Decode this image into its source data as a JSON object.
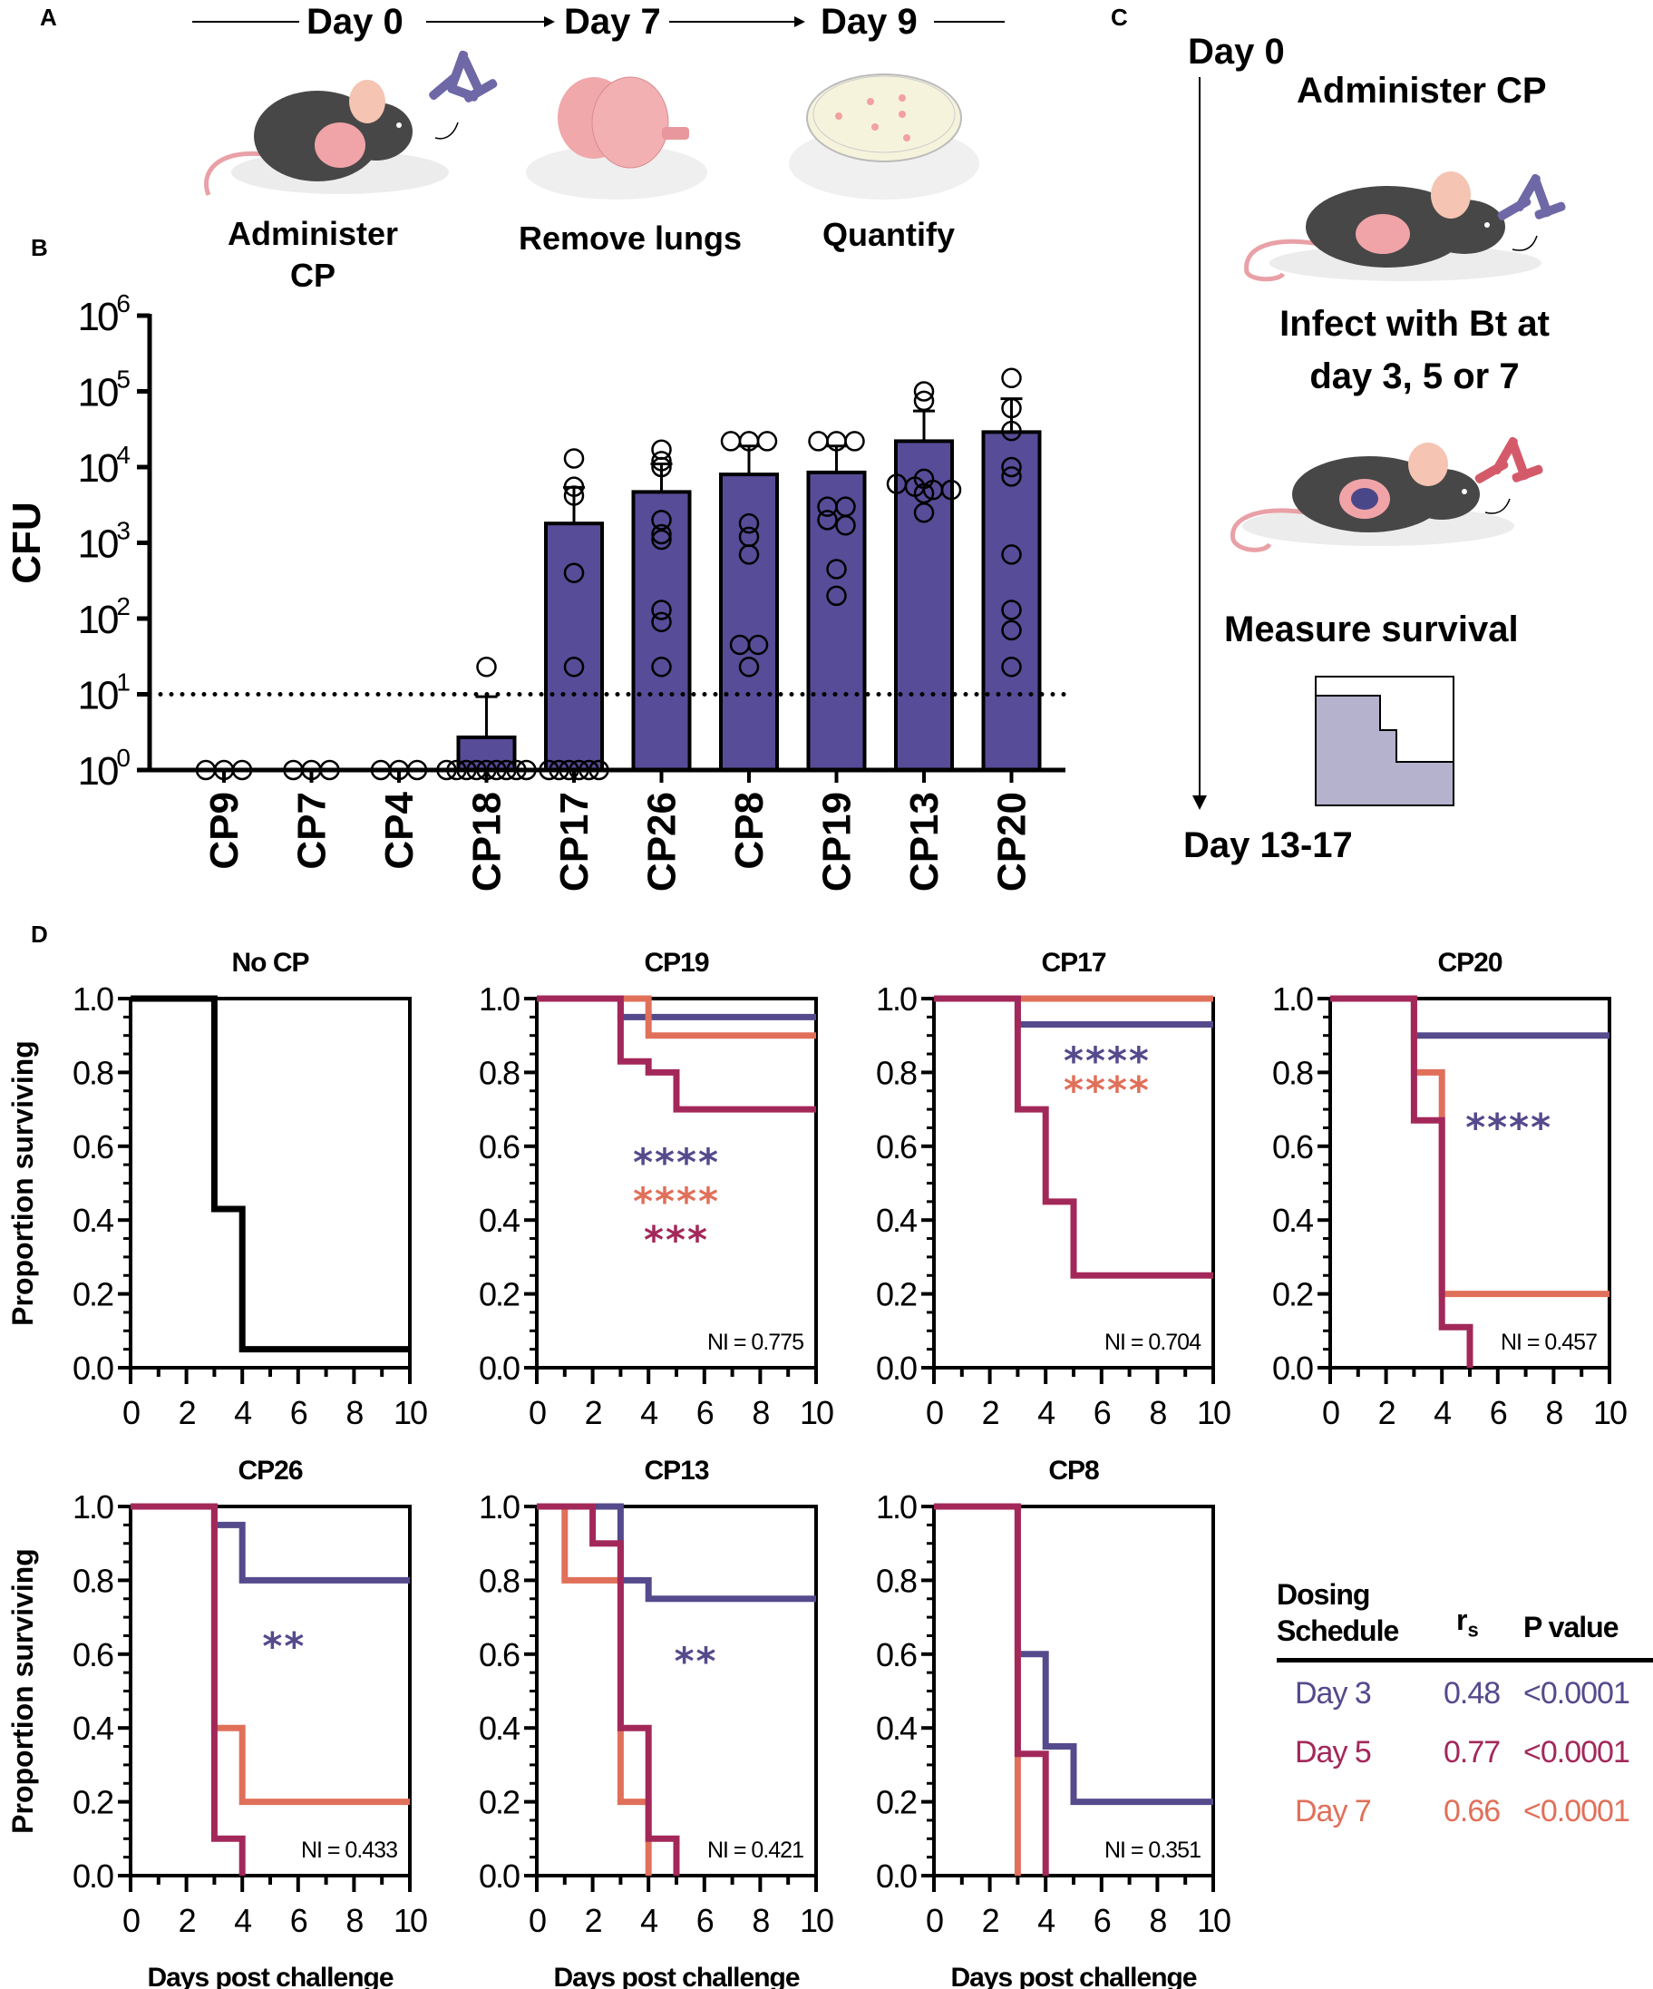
{
  "panel_labels": {
    "A": "A",
    "B": "B",
    "C": "C",
    "D": "D"
  },
  "colors": {
    "bar_fill": "#574c97",
    "day3": "#544a8c",
    "day5": "#a3285a",
    "day7": "#e0705a",
    "nocp": "#000000",
    "survival_fill": "#b4b2cc"
  },
  "panel_a": {
    "timeline": [
      "Day 0",
      "Day 7",
      "Day 9"
    ],
    "steps": [
      {
        "label_line1": "Administer",
        "label_line2": "CP",
        "icon": "mouse-with-bacteria-icon"
      },
      {
        "label_line1": "Remove lungs",
        "label_line2": "",
        "icon": "lungs-icon"
      },
      {
        "label_line1": "Quantify",
        "label_line2": "",
        "icon": "petri-dish-icon"
      }
    ]
  },
  "panel_c": {
    "start": "Day 0",
    "end": "Day 13-17",
    "step1": "Administer CP",
    "step2_line1": "Infect with Bt at",
    "step2_line2": "day 3, 5 or 7",
    "step3": "Measure survival"
  },
  "chart_data": [
    {
      "id": "B",
      "type": "bar",
      "scale": "log",
      "ylabel": "CFU",
      "xlabel": "",
      "ylim": [
        1,
        1000000
      ],
      "yticks": [
        {
          "base": "10",
          "exp": "0"
        },
        {
          "base": "10",
          "exp": "1"
        },
        {
          "base": "10",
          "exp": "2"
        },
        {
          "base": "10",
          "exp": "3"
        },
        {
          "base": "10",
          "exp": "4"
        },
        {
          "base": "10",
          "exp": "5"
        },
        {
          "base": "10",
          "exp": "6"
        }
      ],
      "detection_limit": 10,
      "categories": [
        "CP9",
        "CP7",
        "CP4",
        "CP18",
        "CP17",
        "CP26",
        "CP8",
        "CP19",
        "CP13",
        "CP20"
      ],
      "values": [
        1,
        1,
        1,
        2.7,
        1800,
        4700,
        8000,
        8500,
        22000,
        29000
      ],
      "error_upper": [
        1,
        1,
        1,
        9.3,
        5400,
        11000,
        19000,
        19000,
        55000,
        80000
      ],
      "points": [
        [
          1,
          1,
          1
        ],
        [
          1,
          1,
          1
        ],
        [
          1,
          1,
          1
        ],
        [
          23,
          1,
          1,
          1,
          1,
          1,
          1,
          1,
          1,
          1
        ],
        [
          13000,
          5500,
          4200,
          400,
          23,
          1,
          1,
          1,
          1,
          1,
          1
        ],
        [
          17000,
          12000,
          10000,
          2000,
          1300,
          1100,
          130,
          90,
          23
        ],
        [
          22000,
          22000,
          22000,
          1800,
          1200,
          700,
          45,
          45,
          23
        ],
        [
          22000,
          22000,
          22000,
          3000,
          3000,
          2000,
          1700,
          450,
          200
        ],
        [
          100000,
          75000,
          7000,
          6000,
          5500,
          5000,
          5000,
          4500,
          2500
        ],
        [
          150000,
          60000,
          30000,
          10000,
          7500,
          700,
          130,
          70,
          23
        ]
      ]
    },
    {
      "id": "D-NoCP",
      "type": "line",
      "title": "No CP",
      "xlabel": "",
      "ylabel": "Proportion surviving",
      "xlim": [
        0,
        10
      ],
      "ylim": [
        0,
        1
      ],
      "xticks": [
        "0",
        "2",
        "4",
        "6",
        "8",
        "10"
      ],
      "yticks": [
        "0.0",
        "0.2",
        "0.4",
        "0.6",
        "0.8",
        "1.0"
      ],
      "ni": "",
      "series": [
        {
          "name": "No CP",
          "color_key": "nocp",
          "steps": [
            [
              0,
              1
            ],
            [
              3,
              0.43
            ],
            [
              4,
              0.05
            ],
            [
              10,
              0.05
            ]
          ]
        }
      ],
      "annotations": []
    },
    {
      "id": "D-CP19",
      "type": "line",
      "title": "CP19",
      "xlabel": "",
      "ylabel": "",
      "xlim": [
        0,
        10
      ],
      "ylim": [
        0,
        1
      ],
      "xticks": [
        "0",
        "2",
        "4",
        "6",
        "8",
        "10"
      ],
      "yticks": [
        "0.0",
        "0.2",
        "0.4",
        "0.6",
        "0.8",
        "1.0"
      ],
      "ni": "NI = 0.775",
      "series": [
        {
          "name": "Day 3",
          "color_key": "day3",
          "steps": [
            [
              0,
              1
            ],
            [
              3,
              0.95
            ],
            [
              10,
              0.95
            ]
          ]
        },
        {
          "name": "Day 7",
          "color_key": "day7",
          "steps": [
            [
              0,
              1
            ],
            [
              4,
              0.9
            ],
            [
              10,
              0.9
            ]
          ]
        },
        {
          "name": "Day 5",
          "color_key": "day5",
          "steps": [
            [
              0,
              1
            ],
            [
              3,
              0.83
            ],
            [
              4,
              0.8
            ],
            [
              5,
              0.7
            ],
            [
              10,
              0.7
            ]
          ]
        }
      ],
      "annotations": [
        {
          "text": "****",
          "color_key": "day3",
          "x": 5,
          "y": 0.565
        },
        {
          "text": "****",
          "color_key": "day7",
          "x": 5,
          "y": 0.46
        },
        {
          "text": "***",
          "color_key": "day5",
          "x": 5,
          "y": 0.355
        }
      ]
    },
    {
      "id": "D-CP17",
      "type": "line",
      "title": "CP17",
      "xlabel": "",
      "ylabel": "",
      "xlim": [
        0,
        10
      ],
      "ylim": [
        0,
        1
      ],
      "xticks": [
        "0",
        "2",
        "4",
        "6",
        "8",
        "10"
      ],
      "yticks": [
        "0.0",
        "0.2",
        "0.4",
        "0.6",
        "0.8",
        "1.0"
      ],
      "ni": "NI = 0.704",
      "series": [
        {
          "name": "Day 7",
          "color_key": "day7",
          "steps": [
            [
              0,
              1
            ],
            [
              10,
              1
            ]
          ]
        },
        {
          "name": "Day 3",
          "color_key": "day3",
          "steps": [
            [
              0,
              1
            ],
            [
              3,
              0.93
            ],
            [
              10,
              0.93
            ]
          ]
        },
        {
          "name": "Day 5",
          "color_key": "day5",
          "steps": [
            [
              0,
              1
            ],
            [
              3,
              0.7
            ],
            [
              4,
              0.45
            ],
            [
              5,
              0.25
            ],
            [
              10,
              0.25
            ]
          ]
        }
      ],
      "annotations": [
        {
          "text": "****",
          "color_key": "day3",
          "x": 6.2,
          "y": 0.84
        },
        {
          "text": "****",
          "color_key": "day7",
          "x": 6.2,
          "y": 0.76
        }
      ]
    },
    {
      "id": "D-CP20",
      "type": "line",
      "title": "CP20",
      "xlabel": "",
      "ylabel": "",
      "xlim": [
        0,
        10
      ],
      "ylim": [
        0,
        1
      ],
      "xticks": [
        "0",
        "2",
        "4",
        "6",
        "8",
        "10"
      ],
      "yticks": [
        "0.0",
        "0.2",
        "0.4",
        "0.6",
        "0.8",
        "1.0"
      ],
      "ni": "NI = 0.457",
      "series": [
        {
          "name": "Day 3",
          "color_key": "day3",
          "steps": [
            [
              0,
              1
            ],
            [
              3,
              0.9
            ],
            [
              10,
              0.9
            ]
          ]
        },
        {
          "name": "Day 7",
          "color_key": "day7",
          "steps": [
            [
              0,
              1
            ],
            [
              3,
              0.8
            ],
            [
              4,
              0.2
            ],
            [
              10,
              0.2
            ]
          ]
        },
        {
          "name": "Day 5",
          "color_key": "day5",
          "steps": [
            [
              0,
              1
            ],
            [
              3,
              0.67
            ],
            [
              4,
              0.11
            ],
            [
              5,
              0
            ]
          ]
        }
      ],
      "annotations": [
        {
          "text": "****",
          "color_key": "day3",
          "x": 6.4,
          "y": 0.66
        }
      ]
    },
    {
      "id": "D-CP26",
      "type": "line",
      "title": "CP26",
      "xlabel": "Days post challenge",
      "ylabel": "Proportion surviving",
      "xlim": [
        0,
        10
      ],
      "ylim": [
        0,
        1
      ],
      "xticks": [
        "0",
        "2",
        "4",
        "6",
        "8",
        "10"
      ],
      "yticks": [
        "0.0",
        "0.2",
        "0.4",
        "0.6",
        "0.8",
        "1.0"
      ],
      "ni": "NI = 0.433",
      "series": [
        {
          "name": "Day 3",
          "color_key": "day3",
          "steps": [
            [
              0,
              1
            ],
            [
              3,
              0.95
            ],
            [
              4,
              0.8
            ],
            [
              10,
              0.8
            ]
          ]
        },
        {
          "name": "Day 7",
          "color_key": "day7",
          "steps": [
            [
              0,
              1
            ],
            [
              3,
              0.4
            ],
            [
              4,
              0.2
            ],
            [
              10,
              0.2
            ]
          ]
        },
        {
          "name": "Day 5",
          "color_key": "day5",
          "steps": [
            [
              0,
              1
            ],
            [
              3,
              0.1
            ],
            [
              4,
              0
            ]
          ]
        }
      ],
      "annotations": [
        {
          "text": "**",
          "color_key": "day3",
          "x": 5.5,
          "y": 0.63
        }
      ]
    },
    {
      "id": "D-CP13",
      "type": "line",
      "title": "CP13",
      "xlabel": "Days post challenge",
      "ylabel": "",
      "xlim": [
        0,
        10
      ],
      "ylim": [
        0,
        1
      ],
      "xticks": [
        "0",
        "2",
        "4",
        "6",
        "8",
        "10"
      ],
      "yticks": [
        "0.0",
        "0.2",
        "0.4",
        "0.6",
        "0.8",
        "1.0"
      ],
      "ni": "NI = 0.421",
      "series": [
        {
          "name": "Day 3",
          "color_key": "day3",
          "steps": [
            [
              0,
              1
            ],
            [
              3,
              0.8
            ],
            [
              4,
              0.75
            ],
            [
              10,
              0.75
            ]
          ]
        },
        {
          "name": "Day 7",
          "color_key": "day7",
          "steps": [
            [
              0,
              1
            ],
            [
              1,
              0.8
            ],
            [
              3,
              0.2
            ],
            [
              4,
              0
            ]
          ]
        },
        {
          "name": "Day 5",
          "color_key": "day5",
          "steps": [
            [
              0,
              1
            ],
            [
              2,
              0.9
            ],
            [
              3,
              0.4
            ],
            [
              4,
              0.1
            ],
            [
              5,
              0
            ]
          ]
        }
      ],
      "annotations": [
        {
          "text": "**",
          "color_key": "day3",
          "x": 5.7,
          "y": 0.59
        }
      ]
    },
    {
      "id": "D-CP8",
      "type": "line",
      "title": "CP8",
      "xlabel": "Days post challenge",
      "ylabel": "",
      "xlim": [
        0,
        10
      ],
      "ylim": [
        0,
        1
      ],
      "xticks": [
        "0",
        "2",
        "4",
        "6",
        "8",
        "10"
      ],
      "yticks": [
        "0.0",
        "0.2",
        "0.4",
        "0.6",
        "0.8",
        "1.0"
      ],
      "ni": "NI = 0.351",
      "series": [
        {
          "name": "Day 3",
          "color_key": "day3",
          "steps": [
            [
              0,
              1
            ],
            [
              3,
              0.6
            ],
            [
              4,
              0.35
            ],
            [
              5,
              0.2
            ],
            [
              10,
              0.2
            ]
          ]
        },
        {
          "name": "Day 7",
          "color_key": "day7",
          "steps": [
            [
              0,
              1
            ],
            [
              3,
              0
            ]
          ]
        },
        {
          "name": "Day 5",
          "color_key": "day5",
          "steps": [
            [
              0,
              1
            ],
            [
              3,
              0.33
            ],
            [
              4,
              0
            ]
          ]
        }
      ],
      "annotations": []
    }
  ],
  "stats_table": {
    "headers": {
      "schedule_line1": "Dosing",
      "schedule_line2": "Schedule",
      "rs_main": "r",
      "rs_sub": "s",
      "p": "P value"
    },
    "rows": [
      {
        "schedule": "Day 3",
        "rs": "0.48",
        "p": "<0.0001",
        "color_key": "day3"
      },
      {
        "schedule": "Day 5",
        "rs": "0.77",
        "p": "<0.0001",
        "color_key": "day5"
      },
      {
        "schedule": "Day 7",
        "rs": "0.66",
        "p": "<0.0001",
        "color_key": "day7"
      }
    ]
  }
}
